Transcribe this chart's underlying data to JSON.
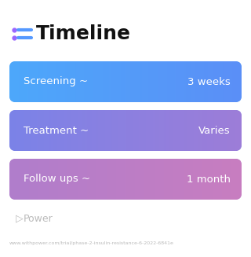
{
  "title": "Timeline",
  "background_color": "#ffffff",
  "title_fontsize": 18,
  "title_color": "#111111",
  "icon_color_dot": "#9966ff",
  "icon_color_line": "#5599ff",
  "rows": [
    {
      "label": "Screening ~",
      "value": "3 weeks",
      "color_left": "#4da8fb",
      "color_right": "#5b8ff7"
    },
    {
      "label": "Treatment ~",
      "value": "Varies",
      "color_left": "#7b83e8",
      "color_right": "#9d7dd8"
    },
    {
      "label": "Follow ups ~",
      "value": "1 month",
      "color_left": "#b07dcc",
      "color_right": "#c87ec0"
    }
  ],
  "label_fontsize": 9.5,
  "value_fontsize": 9.5,
  "text_color": "#ffffff",
  "watermark_text": "Power",
  "watermark_color": "#bbbbbb",
  "url_text": "www.withpower.com/trial/phase-2-insulin-resistance-6-2022-6841e",
  "url_color": "#bbbbbb",
  "url_fontsize": 4.5
}
